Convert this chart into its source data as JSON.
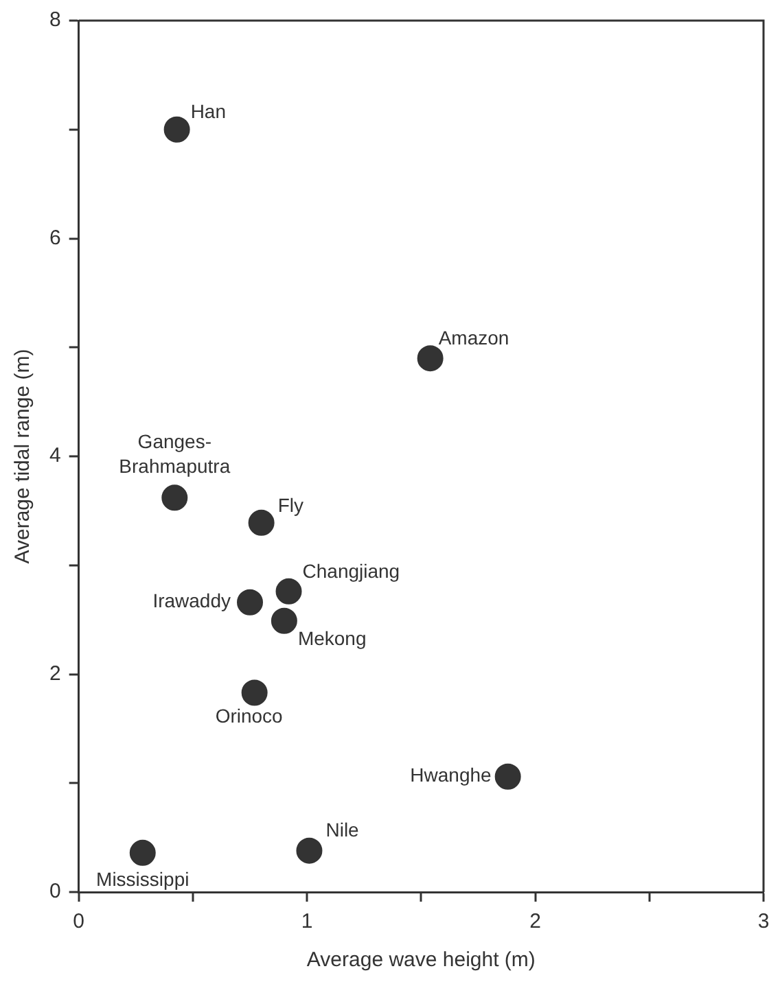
{
  "chart_data": {
    "type": "scatter",
    "xlabel": "Average wave height (m)",
    "ylabel": "Average tidal range (m)",
    "x": [
      0.43,
      1.54,
      0.42,
      0.8,
      0.92,
      0.75,
      0.9,
      0.77,
      1.88,
      1.01,
      0.28
    ],
    "values": [
      7.0,
      4.9,
      3.62,
      3.39,
      2.76,
      2.66,
      2.49,
      1.83,
      1.06,
      0.38,
      0.36
    ],
    "color": "#333333",
    "marker": "circle",
    "xlim": [
      0,
      3
    ],
    "xticks": [
      0,
      {
        "value": 0.5,
        "label": null
      },
      1,
      {
        "value": 1.5,
        "label": null
      },
      2,
      {
        "value": 2.5,
        "label": null
      },
      3
    ],
    "ylim": [
      0,
      8
    ],
    "yticks": [
      0,
      {
        "value": 1,
        "label": null
      },
      2,
      {
        "value": 3,
        "label": null
      },
      4,
      {
        "value": 5,
        "label": null
      },
      6,
      {
        "value": 7,
        "label": null
      },
      8
    ],
    "grid": false,
    "legend": false,
    "annotations": [
      {
        "text": "Han",
        "x": 0.43,
        "y": 7.0
      },
      {
        "text": "Amazon",
        "x": 1.54,
        "y": 4.9
      },
      {
        "text": "Ganges-Brahmaputra",
        "x": 0.42,
        "y": 3.62
      },
      {
        "text": "Fly",
        "x": 0.8,
        "y": 3.39
      },
      {
        "text": "Changjiang",
        "x": 0.92,
        "y": 2.76
      },
      {
        "text": "Irawaddy",
        "x": 0.75,
        "y": 2.66
      },
      {
        "text": "Mekong",
        "x": 0.9,
        "y": 2.49
      },
      {
        "text": "Orinoco",
        "x": 0.77,
        "y": 1.83
      },
      {
        "text": "Hwanghe",
        "x": 1.88,
        "y": 1.06
      },
      {
        "text": "Nile",
        "x": 1.01,
        "y": 0.38
      },
      {
        "text": "Mississippi",
        "x": 0.28,
        "y": 0.36
      }
    ]
  }
}
